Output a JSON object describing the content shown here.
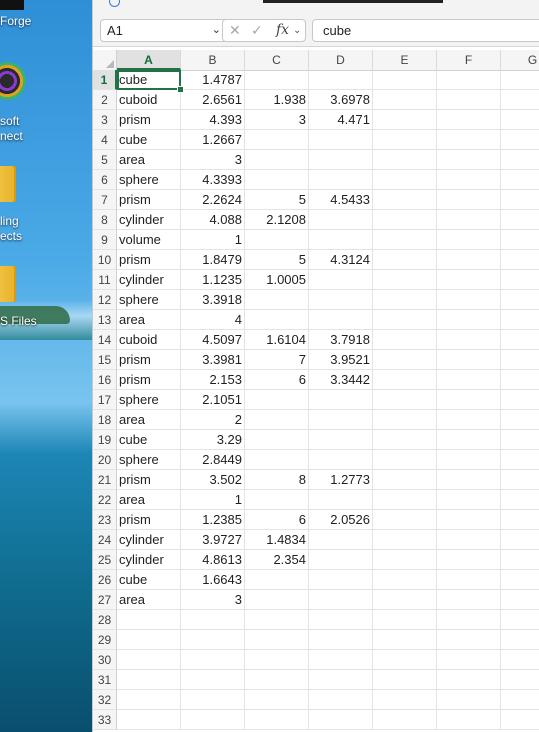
{
  "desktop": {
    "icons": [
      {
        "name": "forge",
        "label": "Forge"
      },
      {
        "name": "connect",
        "label_lines": [
          "soft",
          "nect"
        ]
      },
      {
        "name": "objects",
        "label_lines": [
          "ling",
          "ects"
        ]
      },
      {
        "name": "files",
        "label": "S Files"
      }
    ]
  },
  "formula_bar": {
    "name_box": "A1",
    "fx_label": "fx",
    "formula_value": "cube"
  },
  "columns": [
    "A",
    "B",
    "C",
    "D",
    "E",
    "F",
    "G"
  ],
  "active_cell": "A1",
  "rows": [
    {
      "n": "1",
      "a": "cube",
      "b": "1.4787",
      "c": "",
      "d": ""
    },
    {
      "n": "2",
      "a": "cuboid",
      "b": "2.6561",
      "c": "1.938",
      "d": "3.6978"
    },
    {
      "n": "3",
      "a": "prism",
      "b": "4.393",
      "c": "3",
      "d": "4.471"
    },
    {
      "n": "4",
      "a": "cube",
      "b": "1.2667",
      "c": "",
      "d": ""
    },
    {
      "n": "5",
      "a": "area",
      "b": "3",
      "c": "",
      "d": ""
    },
    {
      "n": "6",
      "a": "sphere",
      "b": "4.3393",
      "c": "",
      "d": ""
    },
    {
      "n": "7",
      "a": "prism",
      "b": "2.2624",
      "c": "5",
      "d": "4.5433"
    },
    {
      "n": "8",
      "a": "cylinder",
      "b": "4.088",
      "c": "2.1208",
      "d": ""
    },
    {
      "n": "9",
      "a": "volume",
      "b": "1",
      "c": "",
      "d": ""
    },
    {
      "n": "10",
      "a": "prism",
      "b": "1.8479",
      "c": "5",
      "d": "4.3124"
    },
    {
      "n": "11",
      "a": "cylinder",
      "b": "1.1235",
      "c": "1.0005",
      "d": ""
    },
    {
      "n": "12",
      "a": "sphere",
      "b": "3.3918",
      "c": "",
      "d": ""
    },
    {
      "n": "13",
      "a": "area",
      "b": "4",
      "c": "",
      "d": ""
    },
    {
      "n": "14",
      "a": "cuboid",
      "b": "4.5097",
      "c": "1.6104",
      "d": "3.7918"
    },
    {
      "n": "15",
      "a": "prism",
      "b": "3.3981",
      "c": "7",
      "d": "3.9521"
    },
    {
      "n": "16",
      "a": "prism",
      "b": "2.153",
      "c": "6",
      "d": "3.3442"
    },
    {
      "n": "17",
      "a": "sphere",
      "b": "2.1051",
      "c": "",
      "d": ""
    },
    {
      "n": "18",
      "a": "area",
      "b": "2",
      "c": "",
      "d": ""
    },
    {
      "n": "19",
      "a": "cube",
      "b": "3.29",
      "c": "",
      "d": ""
    },
    {
      "n": "20",
      "a": "sphere",
      "b": "2.8449",
      "c": "",
      "d": ""
    },
    {
      "n": "21",
      "a": "prism",
      "b": "3.502",
      "c": "8",
      "d": "1.2773"
    },
    {
      "n": "22",
      "a": "area",
      "b": "1",
      "c": "",
      "d": ""
    },
    {
      "n": "23",
      "a": "prism",
      "b": "1.2385",
      "c": "6",
      "d": "2.0526"
    },
    {
      "n": "24",
      "a": "cylinder",
      "b": "3.9727",
      "c": "1.4834",
      "d": ""
    },
    {
      "n": "25",
      "a": "cylinder",
      "b": "4.8613",
      "c": "2.354",
      "d": ""
    },
    {
      "n": "26",
      "a": "cube",
      "b": "1.6643",
      "c": "",
      "d": ""
    },
    {
      "n": "27",
      "a": "area",
      "b": "3",
      "c": "",
      "d": ""
    },
    {
      "n": "28",
      "a": "",
      "b": "",
      "c": "",
      "d": ""
    },
    {
      "n": "29",
      "a": "",
      "b": "",
      "c": "",
      "d": ""
    },
    {
      "n": "30",
      "a": "",
      "b": "",
      "c": "",
      "d": ""
    },
    {
      "n": "31",
      "a": "",
      "b": "",
      "c": "",
      "d": ""
    },
    {
      "n": "32",
      "a": "",
      "b": "",
      "c": "",
      "d": ""
    },
    {
      "n": "33",
      "a": "",
      "b": "",
      "c": "",
      "d": ""
    }
  ]
}
